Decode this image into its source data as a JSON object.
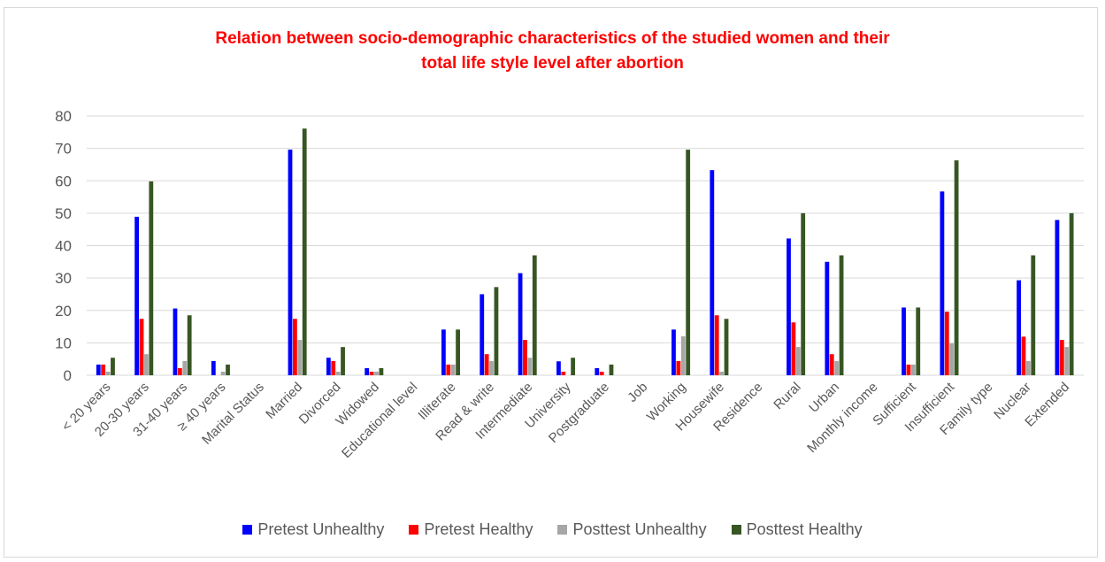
{
  "chart_data": {
    "type": "bar",
    "title_line1": "Relation between socio-demographic characteristics of the studied women and their",
    "title_line2": "total life style level after abortion",
    "ylim": [
      0,
      80
    ],
    "yticks": [
      0,
      10,
      20,
      30,
      40,
      50,
      60,
      70,
      80
    ],
    "grid": true,
    "legend_position": "bottom",
    "categories": [
      "< 20 years",
      "20-30 years",
      "31-40 years",
      "≥ 40 years",
      "Marital Status",
      "Married",
      "Divorced",
      "Widowed",
      "Educational level",
      "Illiterate",
      "Read & write",
      "Intermediate",
      "University",
      "Postgraduate",
      "Job",
      "Working",
      "Housewife",
      "Residence",
      "Rural",
      "Urban",
      "Monthly income",
      "Sufficient",
      "Insufficient",
      "Family type",
      "Nuclear",
      "Extended"
    ],
    "series": [
      {
        "name": "Pretest Unhealthy",
        "color": "#0000ff",
        "values": [
          3.3,
          48.9,
          20.6,
          4.4,
          null,
          69.6,
          5.4,
          2.2,
          null,
          14.1,
          25.0,
          31.5,
          4.3,
          2.2,
          null,
          14.1,
          63.3,
          null,
          42.2,
          35.0,
          null,
          20.9,
          56.7,
          null,
          29.3,
          47.9
        ]
      },
      {
        "name": "Pretest Healthy",
        "color": "#ff0000",
        "values": [
          3.3,
          17.4,
          2.2,
          0,
          null,
          17.4,
          4.4,
          1.1,
          null,
          3.3,
          6.5,
          10.9,
          1.1,
          1.1,
          null,
          4.4,
          18.5,
          null,
          16.3,
          6.5,
          null,
          3.3,
          19.6,
          null,
          11.9,
          10.9
        ]
      },
      {
        "name": "Posttest Unhealthy",
        "color": "#a6a6a6",
        "values": [
          1.1,
          6.5,
          4.4,
          1.1,
          null,
          10.9,
          1.1,
          1.1,
          null,
          3.3,
          4.4,
          5.4,
          0,
          0,
          null,
          12.0,
          1.1,
          null,
          8.7,
          4.4,
          null,
          3.3,
          9.8,
          null,
          4.4,
          8.7
        ]
      },
      {
        "name": "Posttest Healthy",
        "color": "#375623",
        "values": [
          5.4,
          59.8,
          18.5,
          3.3,
          null,
          76.1,
          8.7,
          2.2,
          null,
          14.1,
          27.2,
          37.0,
          5.4,
          3.3,
          null,
          69.6,
          17.4,
          null,
          50.0,
          37.0,
          null,
          20.9,
          66.3,
          null,
          37.0,
          50.0
        ]
      }
    ]
  }
}
